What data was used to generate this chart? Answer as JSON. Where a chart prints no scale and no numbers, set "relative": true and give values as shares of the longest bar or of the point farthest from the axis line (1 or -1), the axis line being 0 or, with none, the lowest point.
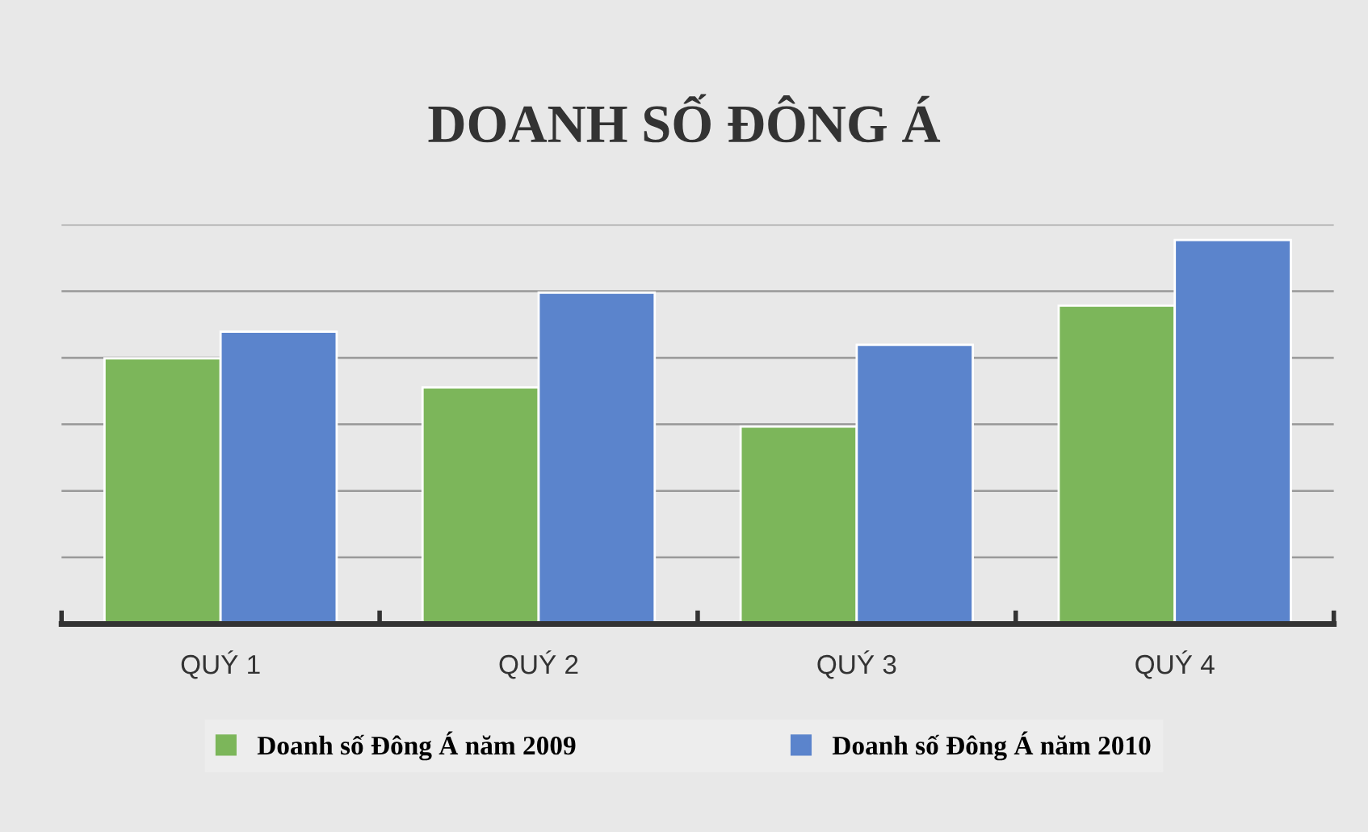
{
  "chart_data": {
    "type": "bar",
    "title": "DOANH SỐ ĐÔNG Á",
    "relative": true,
    "grid": "y",
    "legend": "bottom",
    "categories": [
      "QUÝ 1",
      "QUÝ 2",
      "QUÝ 3",
      "QUÝ 4"
    ],
    "series": [
      {
        "name": "Doanh số Đông Á năm 2009",
        "color": "#7cb65a",
        "values": [
          0.692,
          0.616,
          0.514,
          0.829
        ]
      },
      {
        "name": "Doanh số Đông Á năm 2010",
        "color": "#5b84cc",
        "values": [
          0.761,
          0.863,
          0.727,
          1.0
        ]
      }
    ]
  }
}
